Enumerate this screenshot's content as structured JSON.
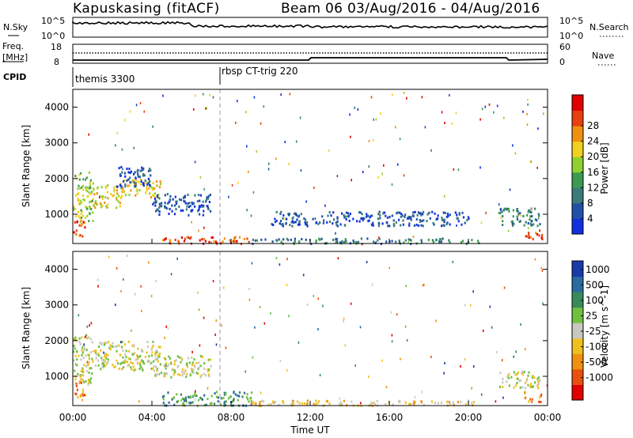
{
  "header": {
    "title": "Kapuskasing (fitACF)",
    "beam_date": "Beam 06  03/Aug/2016 - 04/Aug/2016"
  },
  "noise_panel": {
    "left_label": "N.Sky",
    "right_label": "N.Search",
    "left_ticks": [
      "10^5",
      "10^0"
    ],
    "right_ticks": [
      "10^5",
      "10^0"
    ]
  },
  "freq_panel": {
    "left_label_1": "Freq.",
    "left_label_2": "[MHz]",
    "right_label": "Nave",
    "left_ticks": [
      "18",
      "8"
    ],
    "right_ticks": [
      "60",
      "0"
    ]
  },
  "cpid_panel": {
    "label": "CPID",
    "segments": [
      {
        "name": "themis 3300",
        "start_hour": 0,
        "end_hour": 7.5
      },
      {
        "name": "rbsp CT-trig 220",
        "start_hour": 7.5,
        "end_hour": 24
      }
    ]
  },
  "colors": {
    "power": [
      "#1030e0",
      "#2050a8",
      "#3a7a7a",
      "#3a9a50",
      "#90d030",
      "#f0d020",
      "#f09010",
      "#e84010",
      "#e00000"
    ],
    "velocity": [
      "#1a3aa8",
      "#2a6aa0",
      "#3a8a5a",
      "#70c040",
      "#c8c8c0",
      "#f0c020",
      "#f09010",
      "#e85010",
      "#e00000"
    ],
    "ground_scatter": "#c8c8c0"
  },
  "chart_data": [
    {
      "type": "heatmap",
      "title": "",
      "xlabel": "",
      "ylabel": "Slant Range [km]",
      "x_ticks": [
        "00:00",
        "04:00",
        "08:00",
        "12:00",
        "16:00",
        "20:00",
        "00:00"
      ],
      "y_ticks": [
        1000,
        2000,
        3000,
        4000
      ],
      "xlim_hours": [
        0,
        24
      ],
      "ylim_km": [
        180,
        4500
      ],
      "colorbar": {
        "label": "Power [dB]",
        "ticks": [
          4,
          8,
          12,
          16,
          20,
          24,
          28
        ],
        "range": [
          0,
          30
        ]
      },
      "scatter_regions": [
        {
          "t": [
            0.0,
            1.0
          ],
          "r": [
            800,
            2200
          ],
          "level": 4
        },
        {
          "t": [
            0.0,
            0.6
          ],
          "r": [
            400,
            900
          ],
          "level": 7
        },
        {
          "t": [
            1.0,
            2.5
          ],
          "r": [
            1200,
            1900
          ],
          "level": 5
        },
        {
          "t": [
            2.5,
            4.4
          ],
          "r": [
            1500,
            2000
          ],
          "level": 5
        },
        {
          "t": [
            2.2,
            4.0
          ],
          "r": [
            1800,
            2400
          ],
          "level": 1
        },
        {
          "t": [
            4.0,
            7.0
          ],
          "r": [
            1000,
            1600
          ],
          "level": 1
        },
        {
          "t": [
            4.5,
            9.0
          ],
          "r": [
            200,
            400
          ],
          "level": 7
        },
        {
          "t": [
            9.0,
            20.5
          ],
          "r": [
            200,
            350
          ],
          "level": 2
        },
        {
          "t": [
            10.0,
            20.0
          ],
          "r": [
            700,
            1100
          ],
          "level": 1
        },
        {
          "t": [
            21.5,
            23.6
          ],
          "r": [
            700,
            1200
          ],
          "level": 2
        },
        {
          "t": [
            22.8,
            23.7
          ],
          "r": [
            300,
            600
          ],
          "level": 7
        }
      ]
    },
    {
      "type": "heatmap",
      "title": "",
      "xlabel": "Time UT",
      "ylabel": "Slant Range [km]",
      "x_ticks": [
        "00:00",
        "04:00",
        "08:00",
        "12:00",
        "16:00",
        "20:00",
        "00:00"
      ],
      "y_ticks": [
        1000,
        2000,
        3000,
        4000
      ],
      "xlim_hours": [
        0,
        24
      ],
      "ylim_km": [
        180,
        4500
      ],
      "colorbar": {
        "label": "Velocity [m s^-1]",
        "ticks": [
          1000,
          500,
          100,
          25,
          -25,
          -100,
          -500,
          -1000
        ],
        "range": [
          -1200,
          1200
        ]
      },
      "scatter_regions": [
        {
          "t": [
            0.0,
            1.0
          ],
          "r": [
            800,
            2200
          ],
          "level": 4
        },
        {
          "t": [
            0.0,
            0.6
          ],
          "r": [
            400,
            900
          ],
          "level": 6
        },
        {
          "t": [
            1.0,
            4.4
          ],
          "r": [
            1200,
            2000
          ],
          "level": 4
        },
        {
          "t": [
            4.0,
            7.0
          ],
          "r": [
            1000,
            1600
          ],
          "level": 4
        },
        {
          "t": [
            4.5,
            9.0
          ],
          "r": [
            200,
            600
          ],
          "level": 2
        },
        {
          "t": [
            9.0,
            20.5
          ],
          "r": [
            200,
            350
          ],
          "level": 5
        },
        {
          "t": [
            21.5,
            23.6
          ],
          "r": [
            700,
            1200
          ],
          "level": 4
        },
        {
          "t": [
            22.8,
            23.7
          ],
          "r": [
            300,
            600
          ],
          "level": 6
        }
      ]
    }
  ]
}
